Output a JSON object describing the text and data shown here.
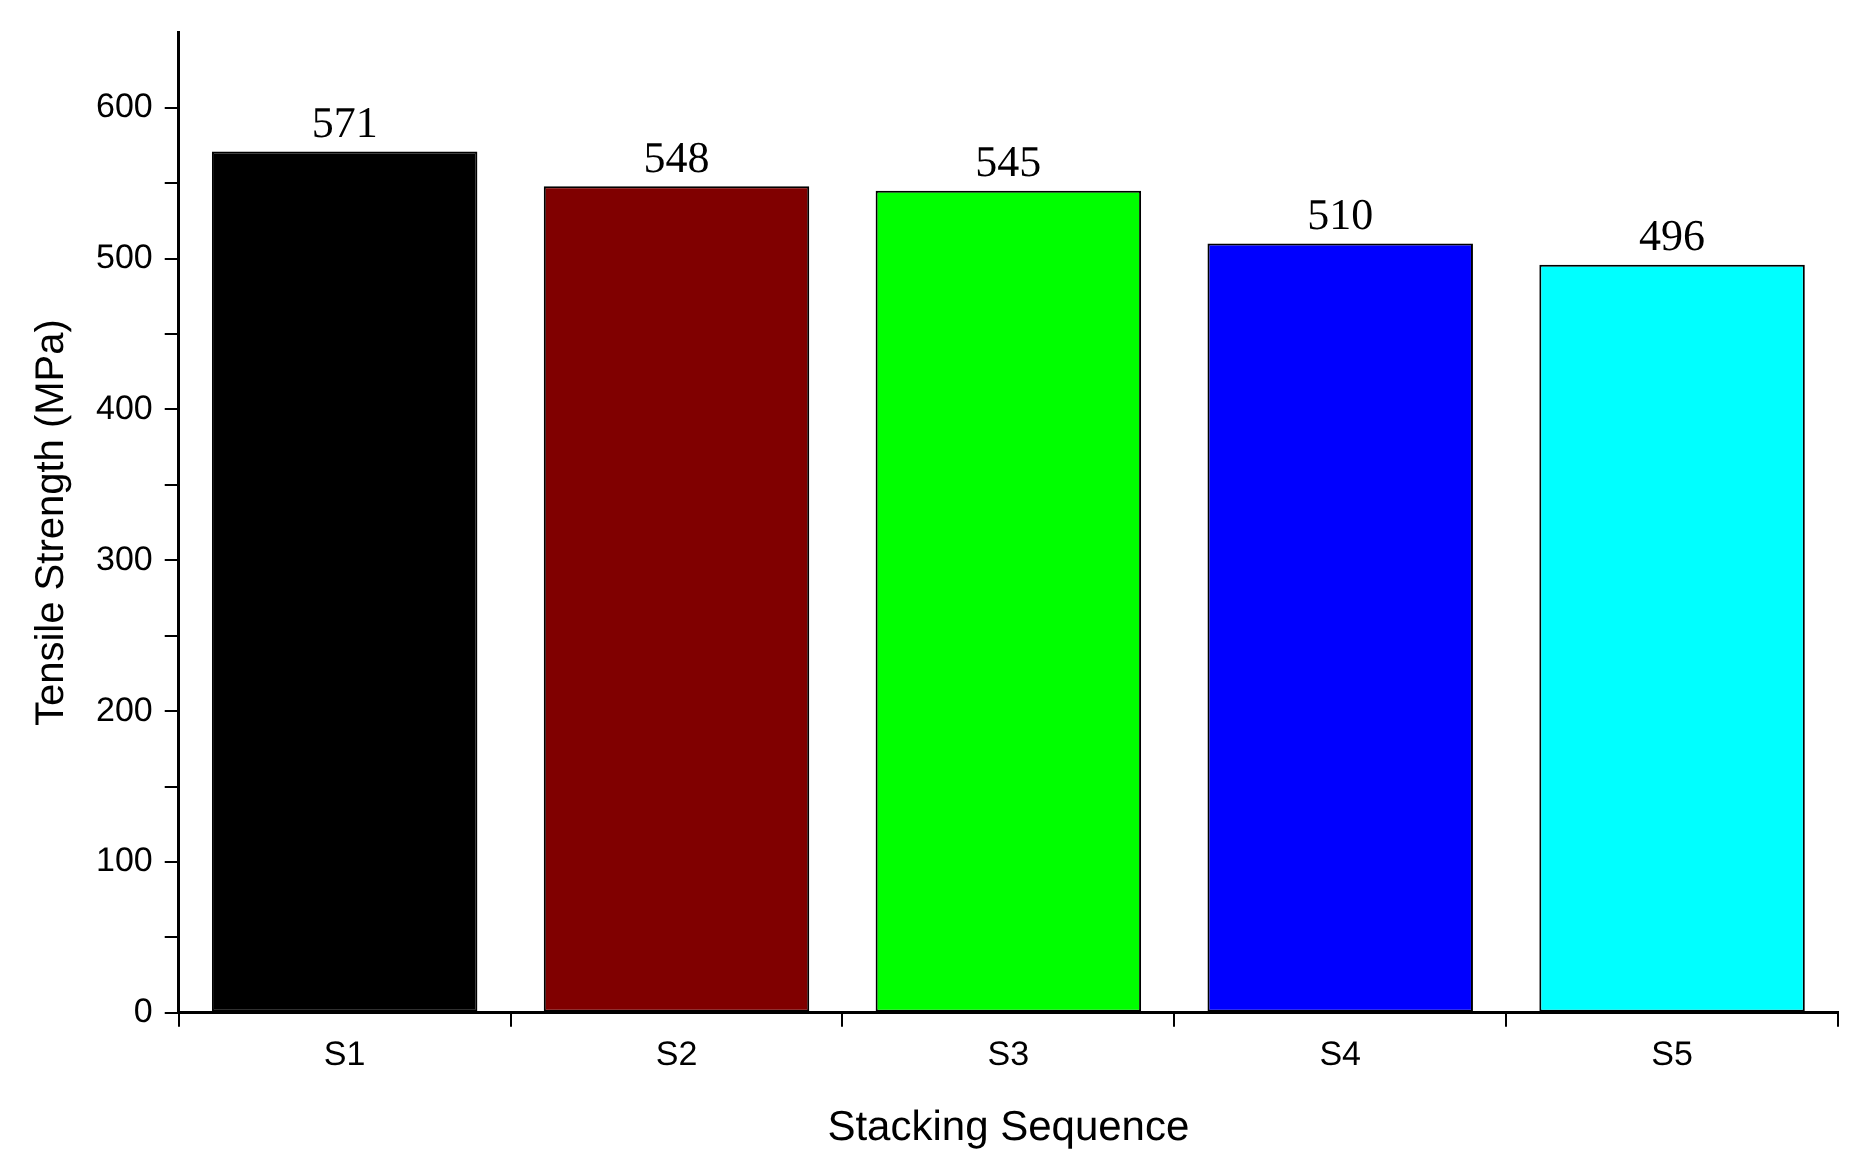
{
  "chart_data": {
    "type": "bar",
    "xlabel": "Stacking Sequence",
    "ylabel": "Tensile Strength (MPa)",
    "categories": [
      "S1",
      "S2",
      "S3",
      "S4",
      "S5"
    ],
    "values": [
      571,
      548,
      545,
      510,
      496
    ],
    "colors": [
      "#000000",
      "#800000",
      "#00ff00",
      "#0000ff",
      "#00ffff"
    ],
    "ylim": [
      0,
      650
    ],
    "yticks": [
      0,
      {
        "value": 50,
        "label": null
      },
      100,
      {
        "value": 150,
        "label": null
      },
      200,
      {
        "value": 250,
        "label": null
      },
      300,
      {
        "value": 350,
        "label": null
      },
      400,
      {
        "value": 450,
        "label": null
      },
      500,
      {
        "value": 550,
        "label": null
      },
      600
    ],
    "grid": false,
    "data_labels": true
  }
}
